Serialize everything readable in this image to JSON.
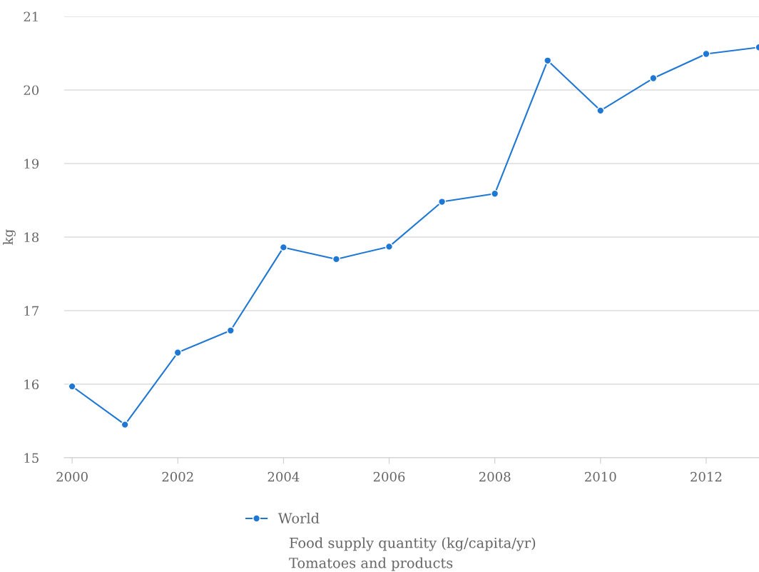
{
  "chart_data": {
    "type": "line",
    "ylabel": "kg",
    "x": [
      2000,
      2001,
      2002,
      2003,
      2004,
      2005,
      2006,
      2007,
      2008,
      2009,
      2010,
      2011,
      2012,
      2013
    ],
    "series": [
      {
        "name": "World",
        "color": "#1f77d4",
        "values": [
          15.97,
          15.45,
          16.43,
          16.73,
          17.86,
          17.7,
          17.87,
          18.48,
          18.59,
          20.4,
          19.72,
          20.16,
          20.49,
          20.58
        ]
      }
    ],
    "annotations": [
      "Food supply quantity (kg/capita/yr)",
      "Tomatoes and products"
    ],
    "xlim": [
      1999.85,
      2013
    ],
    "xticks": [
      2000,
      2002,
      2004,
      2006,
      2008,
      2010,
      2012
    ],
    "ylim": [
      15,
      21
    ],
    "yticks": [
      15,
      16,
      17,
      18,
      19,
      20,
      21
    ],
    "grid": "y",
    "legend": "bottom",
    "marker": "circle",
    "line_style": "solid"
  }
}
